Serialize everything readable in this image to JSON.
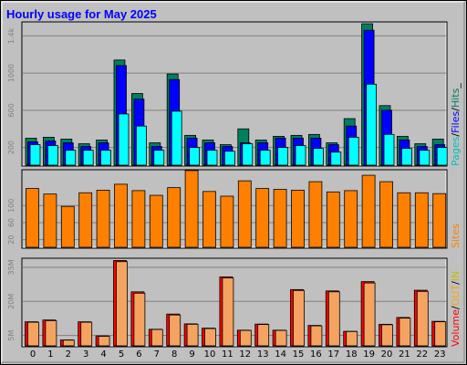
{
  "title": "Hourly usage for May 2025",
  "colors": {
    "background": "#c0c0c0",
    "hits": "#00805c",
    "files": "#0000ff",
    "pages": "#00ffff",
    "sites": "#ff8000",
    "kbytes_in": "#808000",
    "kbytes_out": "#ffa500",
    "volume": "#ff0000",
    "title": "#0000ff"
  },
  "legends": {
    "top": [
      {
        "text": "Pages",
        "color": "#00c0c0"
      },
      {
        "text": "/",
        "color": "#000000"
      },
      {
        "text": "Files",
        "color": "#0000ff"
      },
      {
        "text": "/",
        "color": "#000000"
      },
      {
        "text": "Hits",
        "color": "#00805c"
      },
      {
        "text": "_",
        "color": "#000000"
      }
    ],
    "middle": [
      {
        "text": "Sites",
        "color": "#ff8000"
      }
    ],
    "bottom": [
      {
        "text": "Volume",
        "color": "#ff0000"
      },
      {
        "text": "/",
        "color": "#000000"
      },
      {
        "text": "OUT",
        "color": "#ffa500"
      },
      {
        "text": "/",
        "color": "#000000"
      },
      {
        "text": "IN",
        "color": "#c0c000"
      }
    ]
  },
  "chart_data": [
    {
      "type": "bar",
      "categories": [
        "0",
        "1",
        "2",
        "3",
        "4",
        "5",
        "6",
        "7",
        "8",
        "9",
        "10",
        "11",
        "12",
        "13",
        "14",
        "15",
        "16",
        "17",
        "18",
        "19",
        "20",
        "21",
        "22",
        "23"
      ],
      "ylim": [
        0,
        1550
      ],
      "yticks": [
        "200",
        "600",
        "1000",
        "1.4k"
      ],
      "ytick_values": [
        200,
        600,
        1000,
        1400
      ],
      "series": [
        {
          "name": "Hits",
          "values": [
            300,
            310,
            290,
            240,
            280,
            1140,
            780,
            250,
            990,
            330,
            280,
            230,
            400,
            280,
            320,
            330,
            340,
            250,
            510,
            1530,
            650,
            320,
            240,
            290
          ]
        },
        {
          "name": "Files",
          "values": [
            260,
            270,
            250,
            210,
            250,
            1080,
            720,
            210,
            930,
            300,
            250,
            210,
            250,
            250,
            300,
            300,
            300,
            230,
            430,
            1460,
            600,
            280,
            210,
            230
          ]
        },
        {
          "name": "Pages",
          "values": [
            230,
            220,
            170,
            170,
            170,
            560,
            430,
            170,
            590,
            200,
            170,
            160,
            240,
            170,
            200,
            220,
            190,
            150,
            310,
            880,
            340,
            190,
            170,
            200
          ]
        }
      ]
    },
    {
      "type": "bar",
      "categories": [
        "0",
        "1",
        "2",
        "3",
        "4",
        "5",
        "6",
        "7",
        "8",
        "9",
        "10",
        "11",
        "12",
        "13",
        "14",
        "15",
        "16",
        "17",
        "18",
        "19",
        "20",
        "21",
        "22",
        "23"
      ],
      "ylim": [
        0,
        184
      ],
      "yticks": [
        "20",
        "60",
        "100"
      ],
      "ytick_values": [
        20,
        60,
        100
      ],
      "series": [
        {
          "name": "Sites",
          "values": [
            140,
            127,
            98,
            130,
            136,
            150,
            135,
            124,
            142,
            182,
            133,
            122,
            158,
            140,
            138,
            136,
            156,
            132,
            135,
            171,
            156,
            130,
            130,
            128
          ]
        }
      ]
    },
    {
      "type": "bar",
      "categories": [
        "0",
        "1",
        "2",
        "3",
        "4",
        "5",
        "6",
        "7",
        "8",
        "9",
        "10",
        "11",
        "12",
        "13",
        "14",
        "15",
        "16",
        "17",
        "18",
        "19",
        "20",
        "21",
        "22",
        "23"
      ],
      "ylim": [
        0,
        3900
      ],
      "yticks": [
        "5M",
        "20M",
        "35M"
      ],
      "ytick_values": [
        500,
        2000,
        3500
      ],
      "series": [
        {
          "name": "Volume",
          "values": [
            1100,
            1180,
            300,
            1100,
            480,
            3800,
            2420,
            770,
            1440,
            1010,
            820,
            3080,
            730,
            1000,
            730,
            2520,
            940,
            2460,
            680,
            2870,
            990,
            1290,
            2490,
            1120
          ]
        },
        {
          "name": "OUT",
          "values": [
            1080,
            1150,
            290,
            1080,
            460,
            3750,
            2360,
            760,
            1400,
            990,
            800,
            3030,
            720,
            980,
            720,
            2480,
            920,
            2420,
            670,
            2810,
            970,
            1260,
            2440,
            1100
          ]
        },
        {
          "name": "IN",
          "values": [
            0,
            0,
            0,
            0,
            0,
            0,
            0,
            0,
            0,
            0,
            0,
            0,
            0,
            0,
            0,
            0,
            0,
            0,
            0,
            0,
            0,
            0,
            0,
            0
          ]
        }
      ]
    }
  ]
}
